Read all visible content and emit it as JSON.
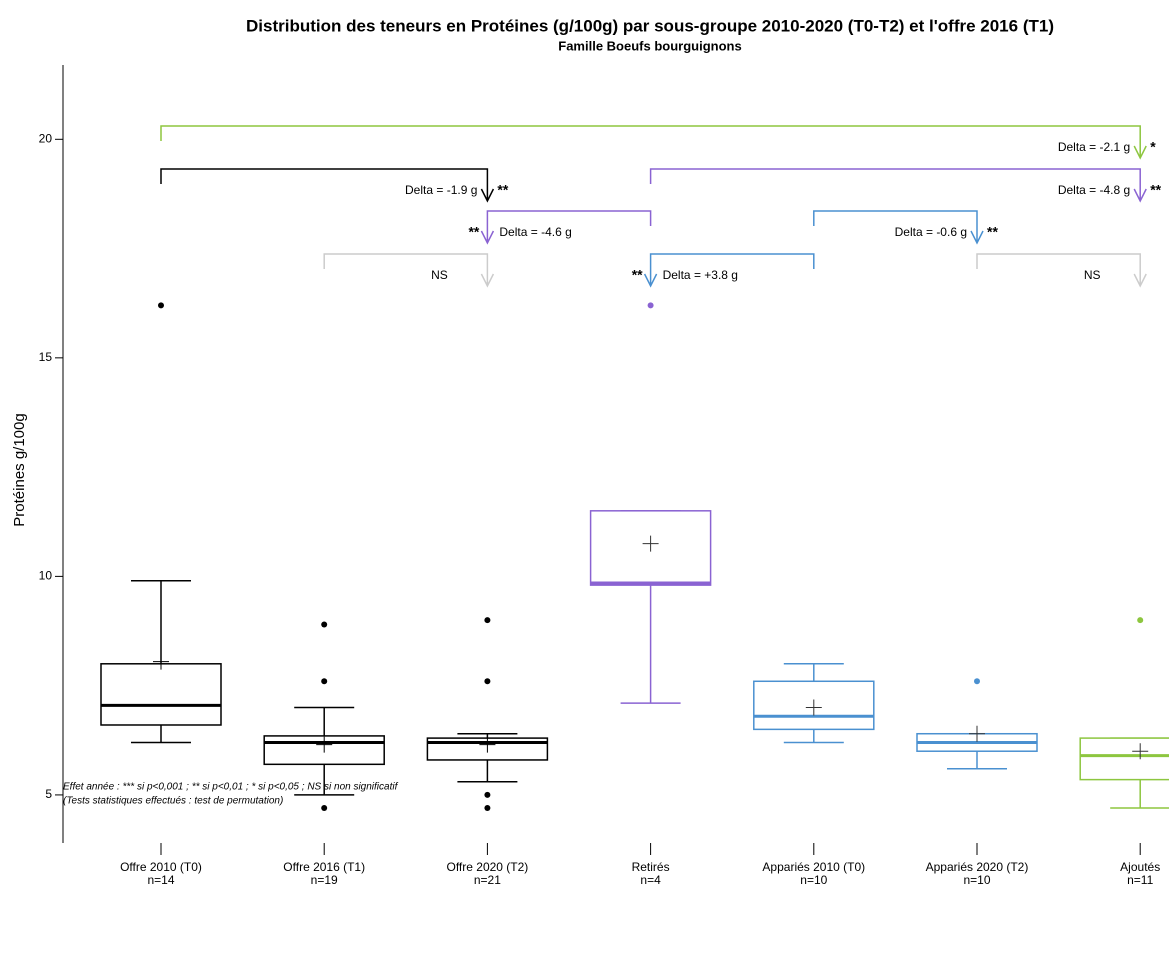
{
  "chart_data": {
    "type": "box",
    "title": "Distribution des teneurs en Protéines (g/100g) par sous-groupe 2010-2020 (T0-T2) et l'offre 2016 (T1)",
    "subtitle": "Famille Boeufs bourguignons",
    "y_label": "Protéines g/100g",
    "ylim": [
      3.9,
      21.7
    ],
    "yticks": [
      5,
      10,
      15,
      20
    ],
    "categories": [
      "Offre 2010 (T0)",
      "Offre 2016 (T1)",
      "Offre 2020 (T2)",
      "Retirés",
      "Appariés 2010 (T0)",
      "Appariés 2020 (T2)",
      "Ajoutés"
    ],
    "n_labels": [
      "n=14",
      "n=19",
      "n=21",
      "n=4",
      "n=10",
      "n=10",
      "n=11"
    ],
    "boxes": [
      {
        "color": "#000000",
        "whisker_low": 6.2,
        "q1": 6.6,
        "median": 7.05,
        "q3": 8.0,
        "whisker_high": 9.9,
        "mean": 8.05,
        "outliers": [
          16.2
        ]
      },
      {
        "color": "#000000",
        "whisker_low": 5.0,
        "q1": 5.7,
        "median": 6.2,
        "q3": 6.35,
        "whisker_high": 7.0,
        "mean": 6.15,
        "outliers": [
          8.9,
          7.6,
          4.7
        ]
      },
      {
        "color": "#000000",
        "whisker_low": 5.3,
        "q1": 5.8,
        "median": 6.2,
        "q3": 6.3,
        "whisker_high": 6.4,
        "mean": 6.15,
        "outliers": [
          9.0,
          7.6,
          5.0,
          4.7
        ]
      },
      {
        "color": "#8a63d2",
        "whisker_low": 7.1,
        "q1": 9.8,
        "median": 9.85,
        "q3": 11.5,
        "whisker_high": 11.5,
        "mean": 10.75,
        "outliers": [
          16.2
        ]
      },
      {
        "color": "#4a90d0",
        "whisker_low": 6.2,
        "q1": 6.5,
        "median": 6.8,
        "q3": 7.6,
        "whisker_high": 8.0,
        "mean": 7.0,
        "outliers": []
      },
      {
        "color": "#4a90d0",
        "whisker_low": 5.6,
        "q1": 6.0,
        "median": 6.2,
        "q3": 6.4,
        "whisker_high": 6.4,
        "mean": 6.4,
        "outliers": [
          7.6
        ]
      },
      {
        "color": "#8dc63f",
        "whisker_low": 4.7,
        "q1": 5.35,
        "median": 5.9,
        "q3": 6.3,
        "whisker_high": 6.3,
        "mean": 6.0,
        "outliers": [
          9.0
        ]
      }
    ],
    "comparisons": [
      {
        "from": 0,
        "to": 6,
        "label": "Delta = -2.1 g",
        "signif": "*",
        "color": "#8dc63f"
      },
      {
        "from": 0,
        "to": 2,
        "label": "Delta = -1.9 g",
        "signif": "**",
        "color": "#000000"
      },
      {
        "from": 3,
        "to": 6,
        "label": "Delta = -4.8 g",
        "signif": "**",
        "color": "#8a63d2"
      },
      {
        "from": 3,
        "to": 2,
        "label": "Delta = -4.6 g",
        "signif": "**",
        "color": "#8a63d2"
      },
      {
        "from": 4,
        "to": 5,
        "label": "Delta = -0.6 g",
        "signif": "**",
        "color": "#4a90d0"
      },
      {
        "from": 1,
        "to": 2,
        "signif": "NS",
        "color": "#cccccc"
      },
      {
        "from": 4,
        "to": 3,
        "label": "Delta = +3.8 g",
        "signif": "**",
        "color": "#4a90d0"
      },
      {
        "from": 5,
        "to": 6,
        "signif": "NS",
        "color": "#cccccc"
      }
    ],
    "footnotes": [
      "Effet année : *** si p<0,001 ; ** si p<0,01 ; * si p<0,05 ; NS si non significatif",
      "(Tests statistiques effectués : test de permutation)"
    ]
  }
}
